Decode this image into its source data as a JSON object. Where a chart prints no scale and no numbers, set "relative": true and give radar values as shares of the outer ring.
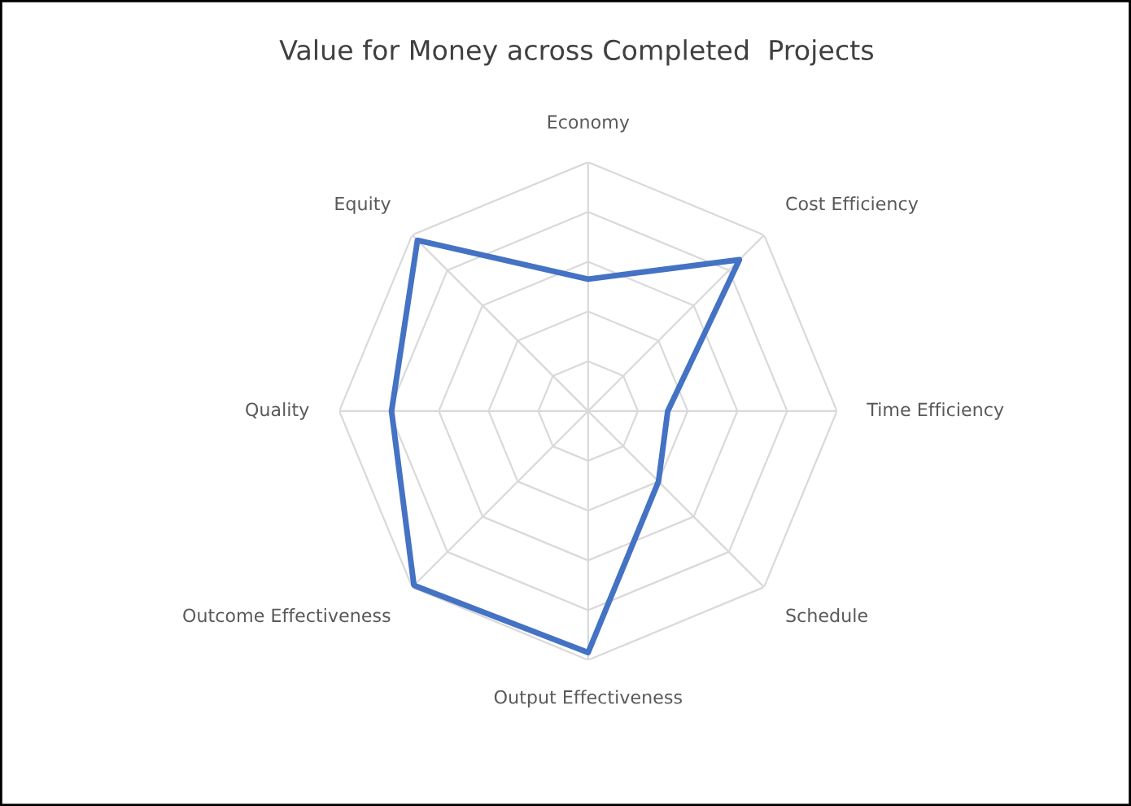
{
  "chart_data": {
    "type": "radar",
    "title": "Value for Money across Completed  Projects",
    "relative": true,
    "categories": [
      "Economy",
      "Cost Efficiency",
      "Time Efficiency",
      "Schedule",
      "Output Effectiveness",
      "Outcome Effectiveness",
      "Quality",
      "Equity"
    ],
    "series": [
      {
        "color": "#4472c4",
        "values": [
          0.53,
          0.86,
          0.32,
          0.4,
          0.97,
          0.99,
          0.79,
          0.97
        ]
      }
    ],
    "grid": true
  }
}
